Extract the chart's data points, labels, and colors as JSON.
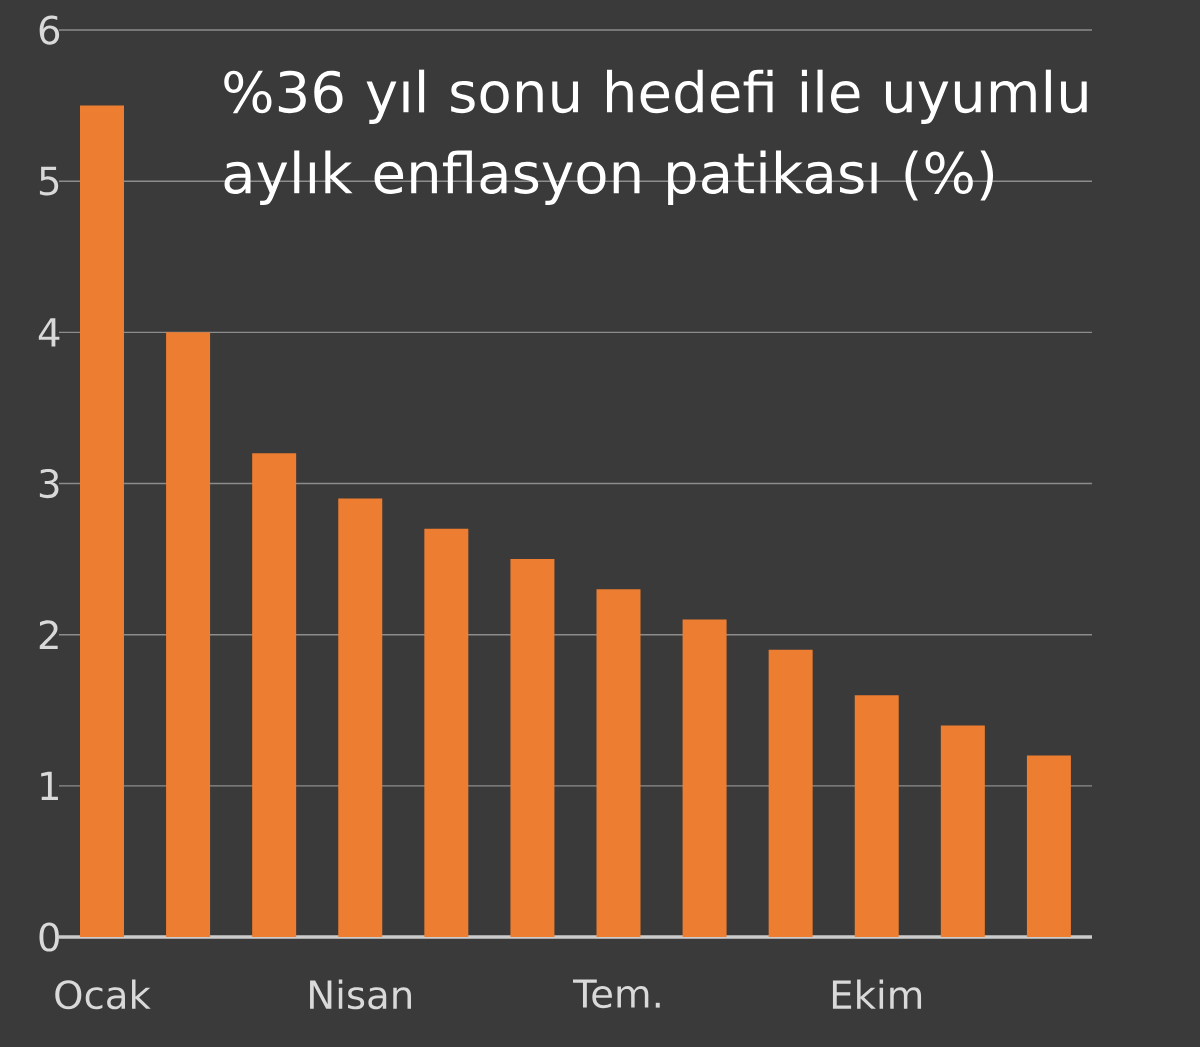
{
  "chart_data": {
    "type": "bar",
    "title": "%36  yıl sonu hedefi ile uyumlu aylık enflasyon patikası (%)",
    "categories": [
      "Ocak",
      null,
      null,
      "Nisan",
      null,
      null,
      "Tem.",
      null,
      null,
      "Ekim",
      null,
      null
    ],
    "values": [
      5.5,
      4.0,
      3.2,
      2.9,
      2.7,
      2.5,
      2.3,
      2.1,
      1.9,
      1.6,
      1.4,
      1.2
    ],
    "color": "#ed7d31",
    "ylim": [
      0,
      6
    ],
    "yticks": [
      0,
      1,
      2,
      3,
      4,
      5,
      6
    ],
    "grid": "y"
  }
}
